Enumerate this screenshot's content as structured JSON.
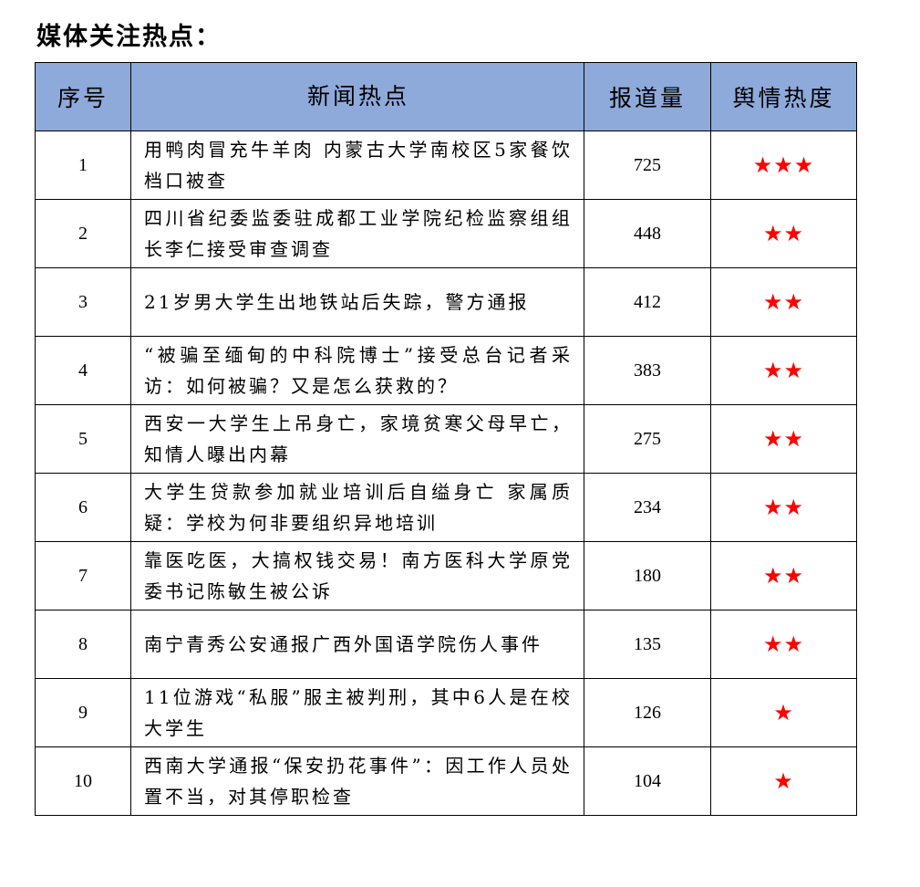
{
  "title": "媒体关注热点：",
  "columns": [
    "序号",
    "新闻热点",
    "报道量",
    "舆情热度"
  ],
  "star_color": "#ff0000",
  "header_color": "#8eaadb",
  "rows": [
    {
      "no": "1",
      "news": "用鸭肉冒充牛羊肉 内蒙古大学南校区5家餐饮档口被查",
      "count": "725",
      "heat": 3
    },
    {
      "no": "2",
      "news": "四川省纪委监委驻成都工业学院纪检监察组组长李仁接受审查调查",
      "count": "448",
      "heat": 2
    },
    {
      "no": "3",
      "news": "21岁男大学生出地铁站后失踪，警方通报",
      "count": "412",
      "heat": 2
    },
    {
      "no": "4",
      "news": "“被骗至缅甸的中科院博士”接受总台记者采访：如何被骗？又是怎么获救的？",
      "count": "383",
      "heat": 2
    },
    {
      "no": "5",
      "news": "西安一大学生上吊身亡，家境贫寒父母早亡，知情人曝出内幕",
      "count": "275",
      "heat": 2
    },
    {
      "no": "6",
      "news": "大学生贷款参加就业培训后自缢身亡 家属质疑：学校为何非要组织异地培训",
      "count": "234",
      "heat": 2
    },
    {
      "no": "7",
      "news": "靠医吃医，大搞权钱交易！南方医科大学原党委书记陈敏生被公诉",
      "count": "180",
      "heat": 2
    },
    {
      "no": "8",
      "news": "南宁青秀公安通报广西外国语学院伤人事件",
      "count": "135",
      "heat": 2
    },
    {
      "no": "9",
      "news": "11位游戏“私服”服主被判刑，其中6人是在校大学生",
      "count": "126",
      "heat": 1
    },
    {
      "no": "10",
      "news": "西南大学通报“保安扔花事件”：因工作人员处置不当，对其停职检查",
      "count": "104",
      "heat": 1
    }
  ]
}
